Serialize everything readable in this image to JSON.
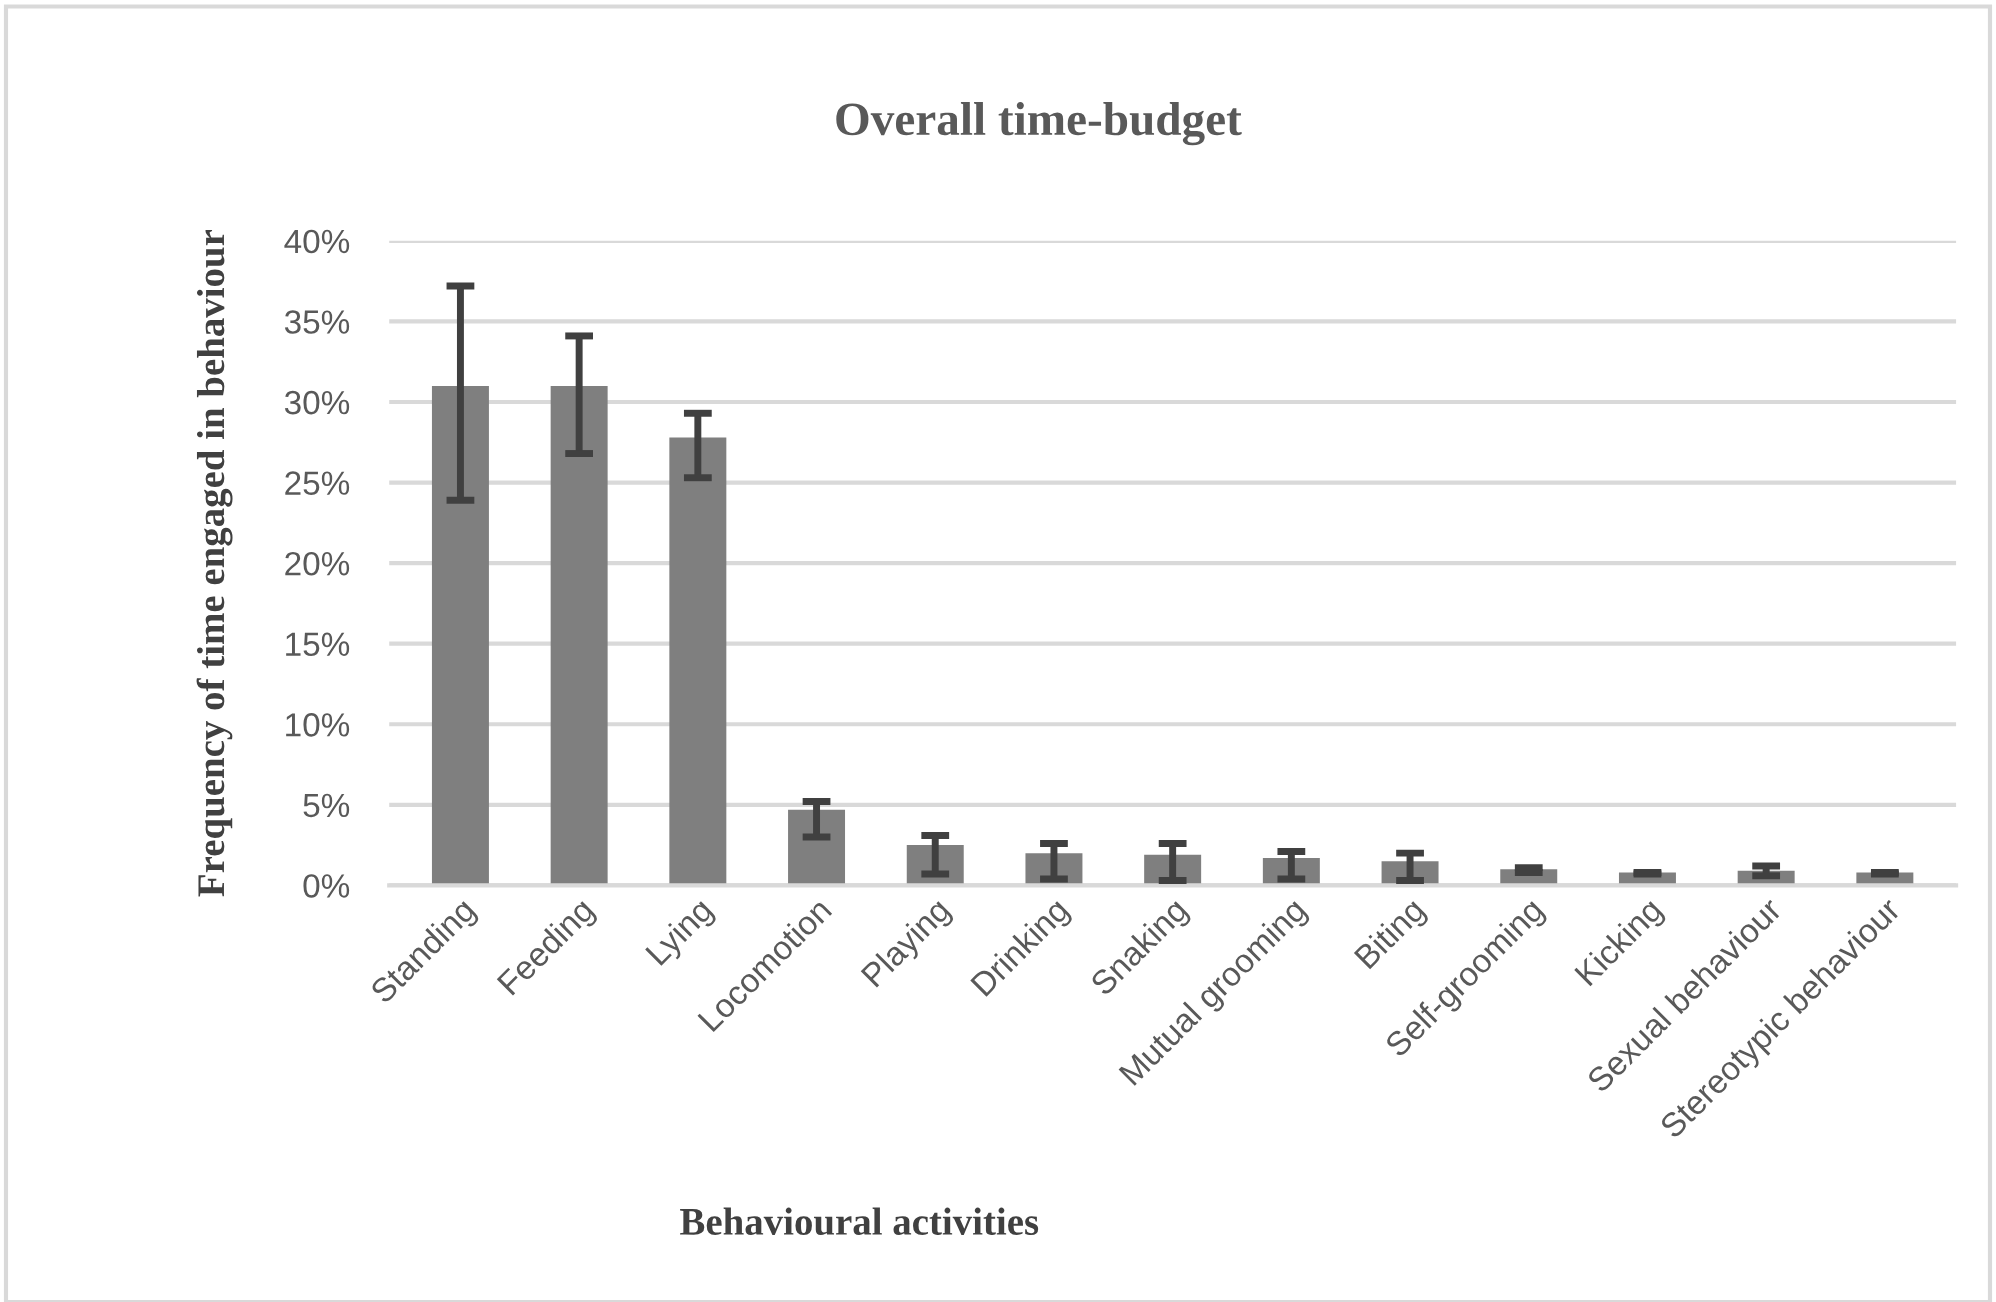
{
  "chart_data": {
    "type": "bar",
    "title": "Overall time-budget",
    "xlabel": "Behavioural activities",
    "ylabel": "Frequency of time engaged in behaviour",
    "categories": [
      "Standing",
      "Feeding",
      "Lying",
      "Locomotion",
      "Playing",
      "Drinking",
      "Snaking",
      "Mutual grooming",
      "Biting",
      "Self-grooming",
      "Kicking",
      "Sexual behaviour",
      "Stereotypic behaviour"
    ],
    "values": [
      31.0,
      31.0,
      27.8,
      4.7,
      2.5,
      2.0,
      1.9,
      1.7,
      1.5,
      1.0,
      0.8,
      0.9,
      0.8
    ],
    "errors": [
      [
        23.9,
        37.2
      ],
      [
        26.8,
        34.1
      ],
      [
        25.3,
        29.3
      ],
      [
        3.0,
        5.2
      ],
      [
        0.7,
        3.1
      ],
      [
        0.4,
        2.6
      ],
      [
        0.3,
        2.6
      ],
      [
        0.4,
        2.1
      ],
      [
        0.3,
        2.0
      ],
      [
        0.8,
        1.1
      ],
      [
        0.7,
        0.8
      ],
      [
        0.6,
        1.2
      ],
      [
        0.7,
        0.8
      ]
    ],
    "color": "#7f7f7f",
    "ylim": [
      0,
      40
    ],
    "yticks": [
      {
        "value": 0,
        "label": "0%"
      },
      {
        "value": 5,
        "label": "5%"
      },
      {
        "value": 10,
        "label": "10%"
      },
      {
        "value": 15,
        "label": "15%"
      },
      {
        "value": 20,
        "label": "20%"
      },
      {
        "value": 25,
        "label": "25%"
      },
      {
        "value": 30,
        "label": "30%"
      },
      {
        "value": 35,
        "label": "35%"
      },
      {
        "value": 40,
        "label": "40%"
      }
    ],
    "grid": "y"
  }
}
